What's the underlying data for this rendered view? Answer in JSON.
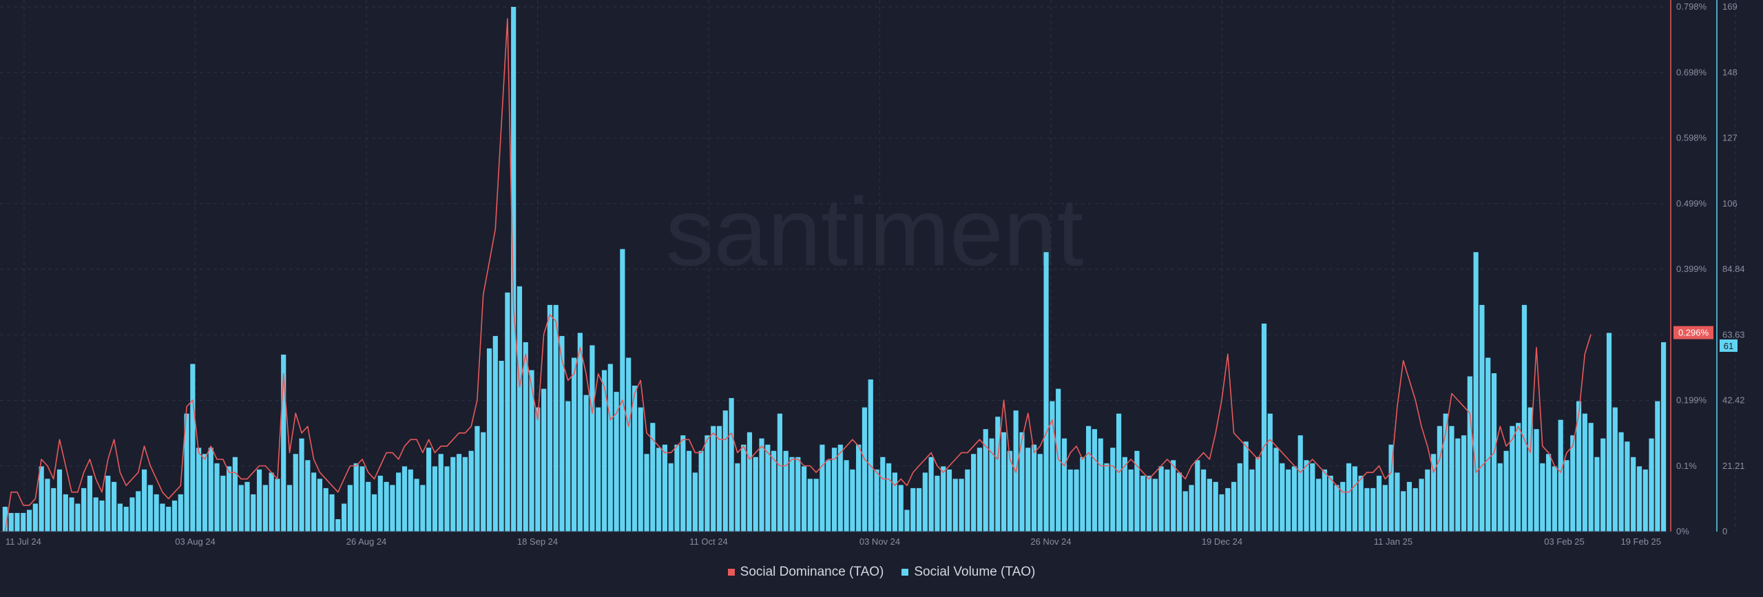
{
  "watermark": "santiment",
  "colors": {
    "background": "#1b1e2d",
    "dominance": "#e85a5a",
    "volume": "#62d4f2",
    "grid": "#2c3142",
    "axis_text": "#8a8fa0"
  },
  "chart_data": {
    "type": "bar+line",
    "x_tick_labels": [
      "11 Jul 24",
      "03 Aug 24",
      "26 Aug 24",
      "18 Sep 24",
      "11 Oct 24",
      "03 Nov 24",
      "26 Nov 24",
      "19 Dec 24",
      "11 Jan 25",
      "03 Feb 25",
      "19 Feb 25"
    ],
    "x_range": [
      "11 Jul 24",
      "19 Feb 25"
    ],
    "y_right_dominance": {
      "ticks": [
        "0.798%",
        "0.698%",
        "0.598%",
        "0.499%",
        "0.399%",
        "0.299%",
        "0.199%",
        "0.1%",
        "0%"
      ],
      "range": [
        0,
        0.798
      ],
      "current_label": "0.296%"
    },
    "y_right_volume": {
      "ticks": [
        "169",
        "148",
        "127",
        "106",
        "84.84",
        "63.63",
        "42.42",
        "21.21",
        "0"
      ],
      "range": [
        0,
        169
      ],
      "current_label": "61"
    },
    "grid": true,
    "legend_position": "bottom-center",
    "series": [
      {
        "name": "Social Dominance (TAO)",
        "kind": "line",
        "unit": "%",
        "values": [
          0.0,
          0.06,
          0.06,
          0.04,
          0.04,
          0.05,
          0.11,
          0.1,
          0.08,
          0.14,
          0.1,
          0.06,
          0.06,
          0.09,
          0.11,
          0.08,
          0.06,
          0.11,
          0.14,
          0.09,
          0.07,
          0.08,
          0.09,
          0.13,
          0.1,
          0.08,
          0.06,
          0.05,
          0.06,
          0.07,
          0.19,
          0.2,
          0.12,
          0.11,
          0.13,
          0.11,
          0.11,
          0.09,
          0.09,
          0.08,
          0.08,
          0.09,
          0.1,
          0.1,
          0.09,
          0.08,
          0.24,
          0.12,
          0.18,
          0.15,
          0.16,
          0.11,
          0.09,
          0.08,
          0.07,
          0.06,
          0.08,
          0.1,
          0.1,
          0.11,
          0.09,
          0.08,
          0.1,
          0.12,
          0.12,
          0.11,
          0.13,
          0.14,
          0.14,
          0.12,
          0.14,
          0.12,
          0.13,
          0.13,
          0.14,
          0.15,
          0.15,
          0.16,
          0.2,
          0.36,
          0.41,
          0.46,
          0.62,
          0.78,
          0.34,
          0.22,
          0.27,
          0.22,
          0.17,
          0.3,
          0.33,
          0.32,
          0.26,
          0.23,
          0.24,
          0.28,
          0.24,
          0.18,
          0.24,
          0.22,
          0.17,
          0.18,
          0.2,
          0.16,
          0.21,
          0.23,
          0.15,
          0.14,
          0.13,
          0.12,
          0.12,
          0.13,
          0.14,
          0.14,
          0.12,
          0.12,
          0.14,
          0.15,
          0.14,
          0.14,
          0.15,
          0.12,
          0.13,
          0.11,
          0.12,
          0.13,
          0.12,
          0.11,
          0.1,
          0.1,
          0.11,
          0.11,
          0.1,
          0.1,
          0.09,
          0.1,
          0.11,
          0.11,
          0.12,
          0.13,
          0.14,
          0.13,
          0.11,
          0.1,
          0.09,
          0.08,
          0.08,
          0.07,
          0.08,
          0.07,
          0.09,
          0.1,
          0.11,
          0.12,
          0.1,
          0.09,
          0.1,
          0.11,
          0.12,
          0.12,
          0.13,
          0.14,
          0.13,
          0.12,
          0.11,
          0.2,
          0.11,
          0.09,
          0.14,
          0.18,
          0.12,
          0.13,
          0.15,
          0.17,
          0.11,
          0.1,
          0.12,
          0.13,
          0.11,
          0.12,
          0.11,
          0.1,
          0.1,
          0.1,
          0.09,
          0.1,
          0.11,
          0.1,
          0.09,
          0.08,
          0.09,
          0.1,
          0.11,
          0.1,
          0.09,
          0.08,
          0.1,
          0.11,
          0.12,
          0.11,
          0.15,
          0.2,
          0.27,
          0.15,
          0.14,
          0.13,
          0.12,
          0.11,
          0.13,
          0.14,
          0.13,
          0.12,
          0.11,
          0.1,
          0.09,
          0.1,
          0.11,
          0.1,
          0.09,
          0.08,
          0.07,
          0.06,
          0.06,
          0.07,
          0.08,
          0.09,
          0.09,
          0.1,
          0.08,
          0.09,
          0.19,
          0.26,
          0.23,
          0.2,
          0.16,
          0.13,
          0.09,
          0.11,
          0.15,
          0.21,
          0.2,
          0.19,
          0.18,
          0.09,
          0.1,
          0.11,
          0.12,
          0.16,
          0.13,
          0.14,
          0.16,
          0.14,
          0.12,
          0.28,
          0.13,
          0.12,
          0.1,
          0.09,
          0.12,
          0.13,
          0.18,
          0.27,
          0.3
        ]
      },
      {
        "name": "Social Volume (TAO)",
        "kind": "bar",
        "unit": "mentions",
        "values": [
          8,
          6,
          6,
          6,
          7,
          9,
          21,
          17,
          14,
          20,
          12,
          11,
          9,
          14,
          18,
          11,
          10,
          18,
          16,
          9,
          8,
          11,
          13,
          20,
          15,
          12,
          9,
          8,
          10,
          12,
          38,
          54,
          27,
          25,
          27,
          22,
          18,
          21,
          24,
          15,
          16,
          12,
          20,
          15,
          19,
          17,
          57,
          15,
          25,
          30,
          23,
          19,
          17,
          14,
          12,
          4,
          9,
          15,
          22,
          21,
          16,
          12,
          18,
          16,
          15,
          19,
          21,
          20,
          17,
          15,
          27,
          21,
          25,
          21,
          24,
          25,
          24,
          26,
          34,
          32,
          59,
          63,
          55,
          77,
          169,
          79,
          61,
          52,
          40,
          46,
          73,
          73,
          63,
          42,
          56,
          64,
          44,
          60,
          40,
          52,
          54,
          45,
          91,
          56,
          47,
          40,
          25,
          35,
          27,
          28,
          22,
          28,
          31,
          26,
          19,
          26,
          31,
          34,
          34,
          39,
          43,
          22,
          28,
          32,
          24,
          30,
          28,
          26,
          38,
          26,
          24,
          24,
          21,
          17,
          17,
          28,
          23,
          27,
          28,
          23,
          20,
          28,
          40,
          49,
          20,
          24,
          22,
          19,
          15,
          7,
          14,
          14,
          19,
          24,
          18,
          21,
          20,
          17,
          17,
          20,
          25,
          27,
          33,
          30,
          37,
          32,
          26,
          39,
          32,
          27,
          28,
          25,
          90,
          42,
          46,
          30,
          20,
          20,
          24,
          34,
          33,
          30,
          22,
          27,
          38,
          24,
          20,
          26,
          18,
          18,
          17,
          21,
          20,
          23,
          19,
          13,
          15,
          23,
          20,
          17,
          16,
          12,
          14,
          16,
          22,
          29,
          20,
          24,
          67,
          38,
          27,
          22,
          20,
          21,
          31,
          23,
          22,
          17,
          20,
          18,
          15,
          16,
          22,
          21,
          18,
          14,
          14,
          18,
          15,
          28,
          19,
          13,
          16,
          14,
          17,
          20,
          25,
          34,
          38,
          34,
          30,
          31,
          50,
          90,
          73,
          56,
          51,
          22,
          26,
          34,
          35,
          73,
          40,
          33,
          22,
          25,
          21,
          36,
          23,
          31,
          42,
          38,
          35,
          24,
          30,
          64,
          40,
          32,
          29,
          24,
          21,
          20,
          30,
          42,
          61
        ]
      }
    ]
  }
}
